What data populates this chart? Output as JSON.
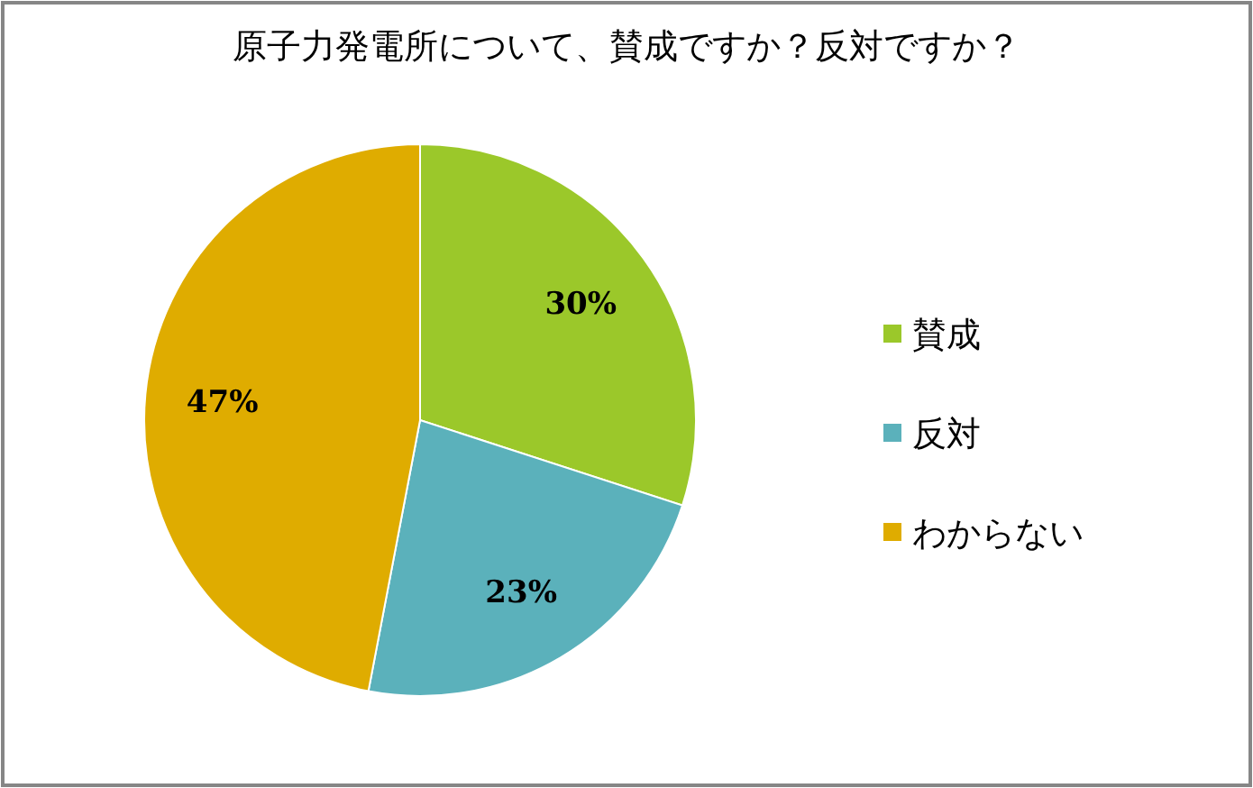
{
  "chart_data": {
    "type": "pie",
    "title": "原子力発電所について、賛成ですか？反対ですか？",
    "categories": [
      "賛成",
      "反対",
      "わからない"
    ],
    "values": [
      30,
      23,
      47
    ],
    "colors": [
      "#9bc82a",
      "#5bb1bb",
      "#dfac00"
    ],
    "value_labels": [
      "30%",
      "23%",
      "47%"
    ],
    "legend": "right"
  }
}
